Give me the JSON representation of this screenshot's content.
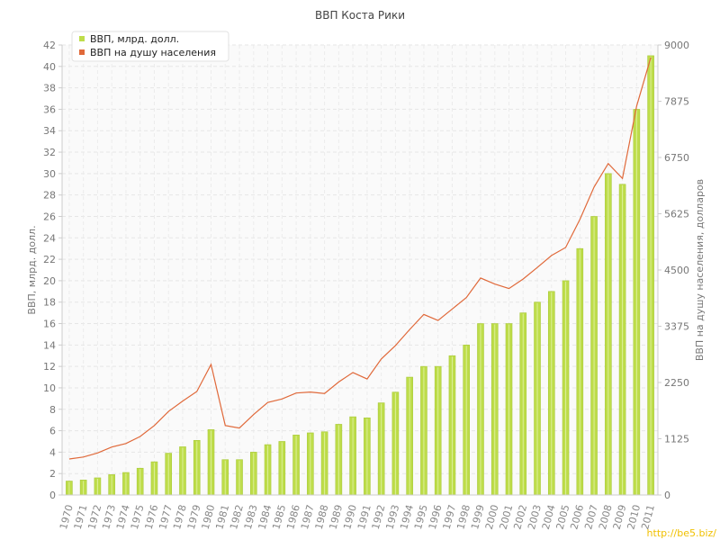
{
  "chart_data": {
    "type": "bar",
    "title": "ВВП Коста Рики",
    "ylabel": "ВВП, млрд. долл.",
    "y2label": "ВВП на душу населения, долларов",
    "ylim": [
      0,
      42
    ],
    "y2lim": [
      0,
      9000
    ],
    "yticks": [
      "0",
      "2",
      "4",
      "6",
      "8",
      "10",
      "12",
      "14",
      "16",
      "18",
      "20",
      "22",
      "24",
      "26",
      "28",
      "30",
      "32",
      "34",
      "36",
      "38",
      "40",
      "42"
    ],
    "y2ticks": [
      "0",
      "1125",
      "2250",
      "3375",
      "4500",
      "5625",
      "6750",
      "7875",
      "9000"
    ],
    "grid": true,
    "legend_position": "top-left",
    "categories": [
      "1970",
      "1971",
      "1972",
      "1973",
      "1974",
      "1975",
      "1976",
      "1977",
      "1978",
      "1979",
      "1980",
      "1981",
      "1982",
      "1983",
      "1984",
      "1985",
      "1986",
      "1987",
      "1988",
      "1989",
      "1990",
      "1991",
      "1992",
      "1993",
      "1994",
      "1995",
      "1996",
      "1997",
      "1998",
      "1999",
      "2000",
      "2001",
      "2002",
      "2003",
      "2004",
      "2005",
      "2006",
      "2007",
      "2008",
      "2009",
      "2010",
      "2011"
    ],
    "series": [
      {
        "name": "ВВП, млрд. долл.",
        "type": "bar",
        "axis": "left",
        "color": "#bedd4a",
        "values": [
          1.3,
          1.4,
          1.6,
          1.9,
          2.1,
          2.5,
          3.1,
          3.9,
          4.5,
          5.1,
          6.1,
          3.3,
          3.3,
          4.0,
          4.7,
          5.0,
          5.6,
          5.8,
          5.9,
          6.6,
          7.3,
          7.2,
          8.6,
          9.6,
          11.0,
          12.0,
          12.0,
          13.0,
          14.0,
          16.0,
          16.0,
          16.0,
          17.0,
          18.0,
          19.0,
          20.0,
          23.0,
          26.0,
          30.0,
          29.0,
          36.0,
          41.0
        ]
      },
      {
        "name": "ВВП на душу населения",
        "type": "line",
        "axis": "right",
        "color": "#e0693a",
        "values": [
          720,
          760,
          840,
          960,
          1030,
          1170,
          1390,
          1670,
          1880,
          2070,
          2610,
          1390,
          1340,
          1610,
          1850,
          1920,
          2040,
          2060,
          2030,
          2260,
          2450,
          2320,
          2720,
          2990,
          3310,
          3610,
          3490,
          3720,
          3950,
          4340,
          4220,
          4130,
          4320,
          4550,
          4790,
          4950,
          5510,
          6160,
          6630,
          6330,
          7780,
          8750
        ]
      }
    ]
  },
  "watermark": "http://be5.biz/"
}
